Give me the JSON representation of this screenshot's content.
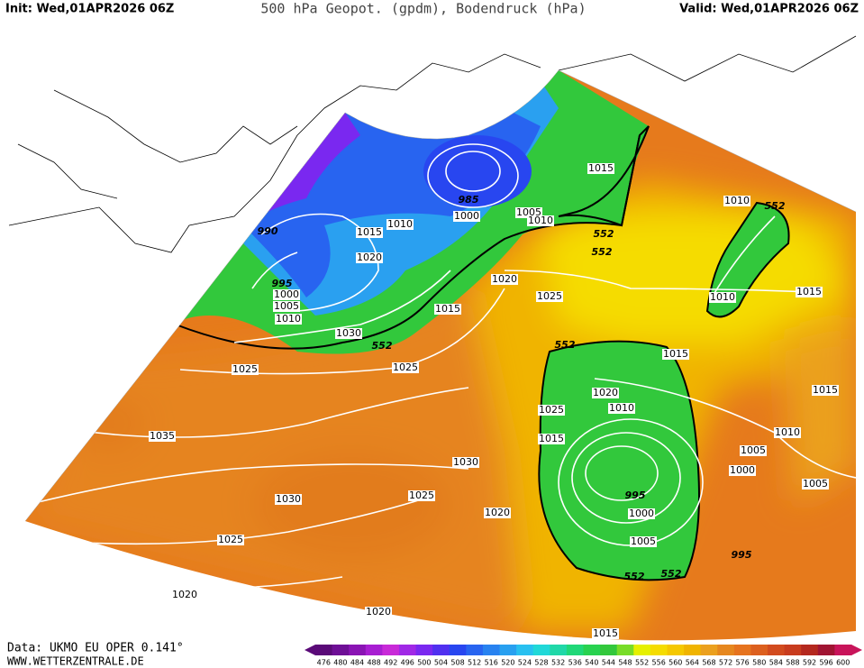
{
  "header": {
    "init": "Init: Wed,01APR2026 06Z",
    "title": "500 hPa Geopot. (gpdm), Bodendruck (hPa)",
    "valid": "Valid: Wed,01APR2026 06Z"
  },
  "footer": {
    "source": "Data: UKMO EU OPER 0.141°",
    "website": "WWW.WETTERZENTRALE.DE"
  },
  "colorbar": {
    "labels": [
      476,
      480,
      484,
      488,
      492,
      496,
      500,
      504,
      508,
      512,
      516,
      520,
      524,
      528,
      532,
      536,
      540,
      544,
      548,
      552,
      556,
      560,
      564,
      568,
      572,
      576,
      580,
      584,
      588,
      592,
      596,
      600
    ],
    "colors": [
      "#5a0a78",
      "#6e0f96",
      "#8a14b4",
      "#a81ed2",
      "#c82ad8",
      "#a028e6",
      "#7a28f0",
      "#5030f0",
      "#2846f0",
      "#2864f0",
      "#2882f0",
      "#28a0f0",
      "#28c0f0",
      "#20d8d8",
      "#20d8a8",
      "#20d878",
      "#28d250",
      "#32c83c",
      "#78dc28",
      "#e6f000",
      "#f5dc00",
      "#f5c800",
      "#f0b400",
      "#eba01e",
      "#e6871e",
      "#e6731e",
      "#dc5f1e",
      "#d24b1e",
      "#c83c1e",
      "#b4281e",
      "#a01432",
      "#c8145a"
    ]
  },
  "map_labels": [
    990,
    995,
    1000,
    1005,
    1010,
    1015,
    1020,
    1010,
    985,
    1000,
    1005,
    1010,
    1015,
    1030,
    552,
    1025,
    1025,
    1020,
    1025,
    1015,
    552,
    552,
    1010,
    552,
    1010,
    1015,
    552,
    1015,
    1020,
    1010,
    1025,
    1015,
    1015,
    1010,
    1005,
    1000,
    1005,
    995,
    1000,
    1005,
    995,
    552,
    552,
    1035,
    1030,
    1030,
    1025,
    1020,
    1025,
    1020,
    1020,
    1015
  ]
}
